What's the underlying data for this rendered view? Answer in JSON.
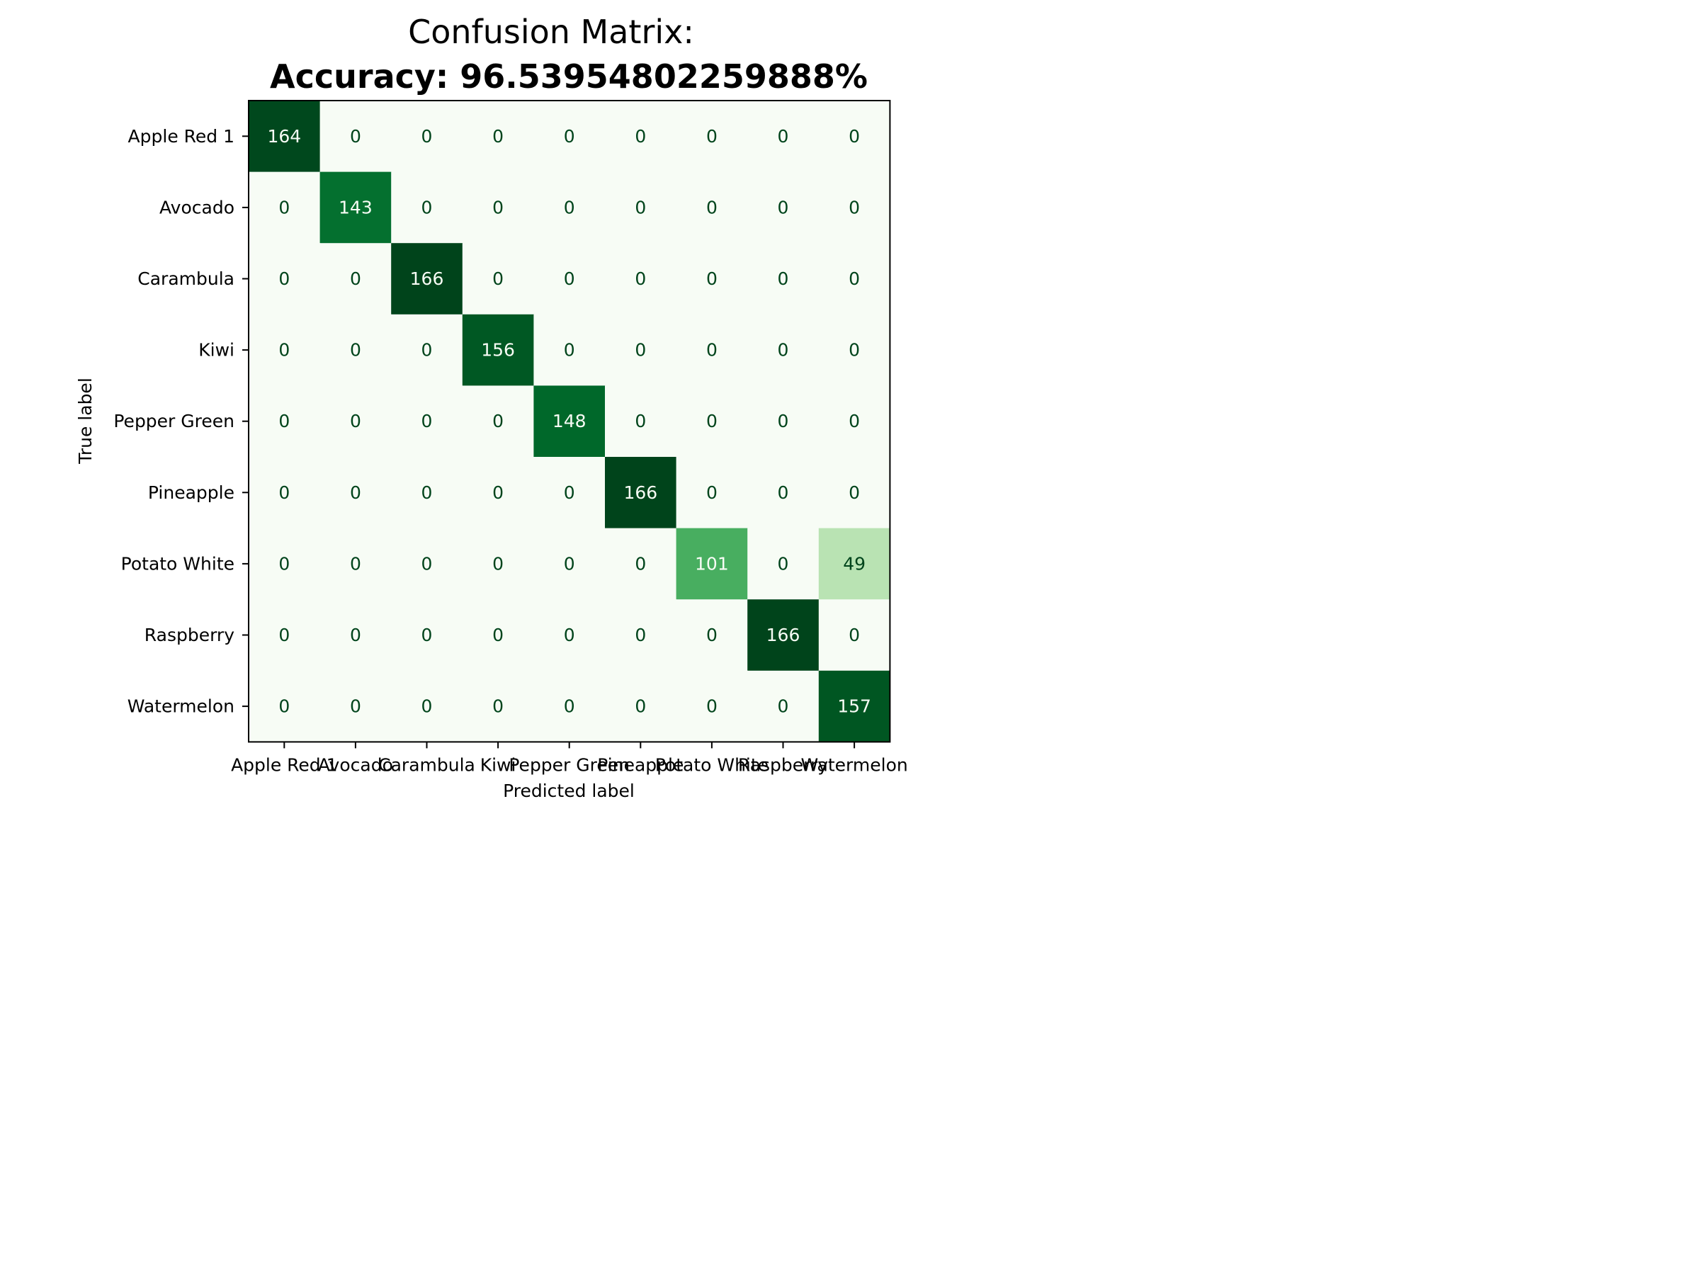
{
  "chart_data": {
    "type": "heatmap",
    "title": "Confusion Matrix:",
    "subtitle": "Accuracy: 96.5395480225988​8%",
    "xlabel": "Predicted label",
    "ylabel": "True label",
    "x_categories": [
      "Apple Red 1",
      "Avocado",
      "Carambula",
      "Kiwi",
      "Pepper Green",
      "Pineapple",
      "Potato White",
      "Raspberry",
      "Watermelon"
    ],
    "y_categories": [
      "Apple Red 1",
      "Avocado",
      "Carambula",
      "Kiwi",
      "Pepper Green",
      "Pineapple",
      "Potato White",
      "Raspberry",
      "Watermelon"
    ],
    "values": [
      [
        164,
        0,
        0,
        0,
        0,
        0,
        0,
        0,
        0
      ],
      [
        0,
        143,
        0,
        0,
        0,
        0,
        0,
        0,
        0
      ],
      [
        0,
        0,
        166,
        0,
        0,
        0,
        0,
        0,
        0
      ],
      [
        0,
        0,
        0,
        156,
        0,
        0,
        0,
        0,
        0
      ],
      [
        0,
        0,
        0,
        0,
        148,
        0,
        0,
        0,
        0
      ],
      [
        0,
        0,
        0,
        0,
        0,
        166,
        0,
        0,
        0
      ],
      [
        0,
        0,
        0,
        0,
        0,
        0,
        101,
        0,
        49
      ],
      [
        0,
        0,
        0,
        0,
        0,
        0,
        0,
        166,
        0
      ],
      [
        0,
        0,
        0,
        0,
        0,
        0,
        0,
        0,
        157
      ]
    ],
    "colormap": "Greens",
    "vmin": 0,
    "vmax": 166,
    "grid": false,
    "colorbar": false
  }
}
